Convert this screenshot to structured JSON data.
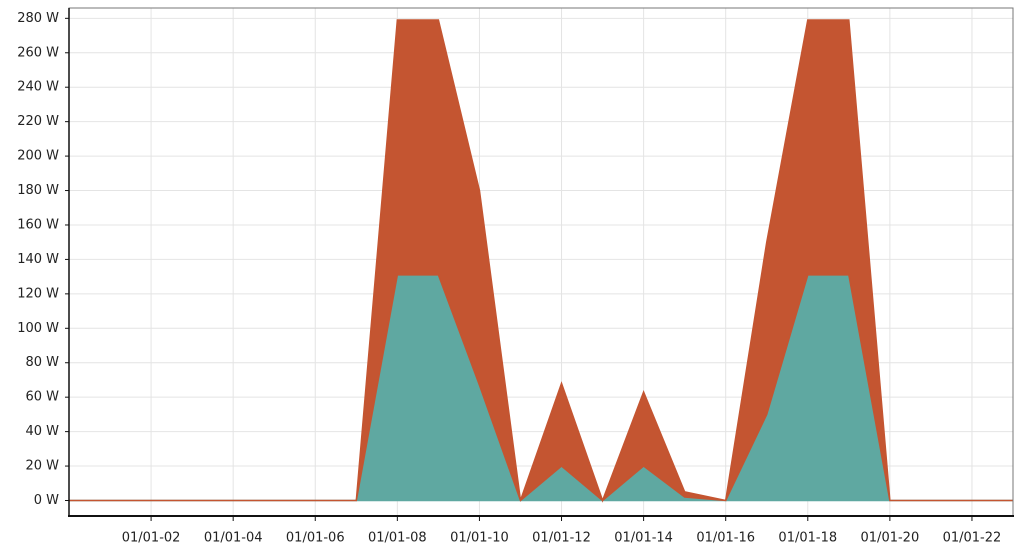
{
  "chart_data": {
    "type": "stacked-area",
    "x": [
      0,
      1,
      2,
      3,
      4,
      5,
      6,
      7,
      8,
      9,
      10,
      11,
      12,
      13,
      14,
      15,
      16,
      17,
      18,
      19,
      20,
      21,
      22,
      23
    ],
    "series": [
      {
        "color": "#5fa8a1",
        "values": [
          0,
          0,
          0,
          0,
          0,
          0,
          0,
          0,
          131,
          131,
          67,
          0,
          20,
          0,
          20,
          2,
          0,
          50,
          131,
          131,
          0,
          0,
          0,
          0
        ]
      },
      {
        "color": "#c45531",
        "values": [
          0,
          0,
          0,
          0,
          0,
          0,
          0,
          0,
          148,
          148,
          113,
          0,
          48,
          0,
          43,
          3,
          0,
          100,
          148,
          148,
          0,
          0,
          0,
          0
        ]
      }
    ],
    "xlim": [
      0,
      23
    ],
    "xticks": [
      {
        "value": 2,
        "label": "01/01-02"
      },
      {
        "value": 4,
        "label": "01/01-04"
      },
      {
        "value": 6,
        "label": "01/01-06"
      },
      {
        "value": 8,
        "label": "01/01-08"
      },
      {
        "value": 10,
        "label": "01/01-10"
      },
      {
        "value": 12,
        "label": "01/01-12"
      },
      {
        "value": 14,
        "label": "01/01-14"
      },
      {
        "value": 16,
        "label": "01/01-16"
      },
      {
        "value": 18,
        "label": "01/01-18"
      },
      {
        "value": 20,
        "label": "01/01-20"
      },
      {
        "value": 22,
        "label": "01/01-22"
      }
    ],
    "ylim": [
      -9,
      286
    ],
    "yticks": [
      {
        "value": 0,
        "label": "0 W"
      },
      {
        "value": 20,
        "label": "20 W"
      },
      {
        "value": 40,
        "label": "40 W"
      },
      {
        "value": 60,
        "label": "60 W"
      },
      {
        "value": 80,
        "label": "80 W"
      },
      {
        "value": 100,
        "label": "100 W"
      },
      {
        "value": 120,
        "label": "120 W"
      },
      {
        "value": 140,
        "label": "140 W"
      },
      {
        "value": 160,
        "label": "160 W"
      },
      {
        "value": 180,
        "label": "180 W"
      },
      {
        "value": 200,
        "label": "200 W"
      },
      {
        "value": 220,
        "label": "220 W"
      },
      {
        "value": 240,
        "label": "240 W"
      },
      {
        "value": 260,
        "label": "260 W"
      },
      {
        "value": 280,
        "label": "280 W"
      }
    ],
    "grid": true
  }
}
